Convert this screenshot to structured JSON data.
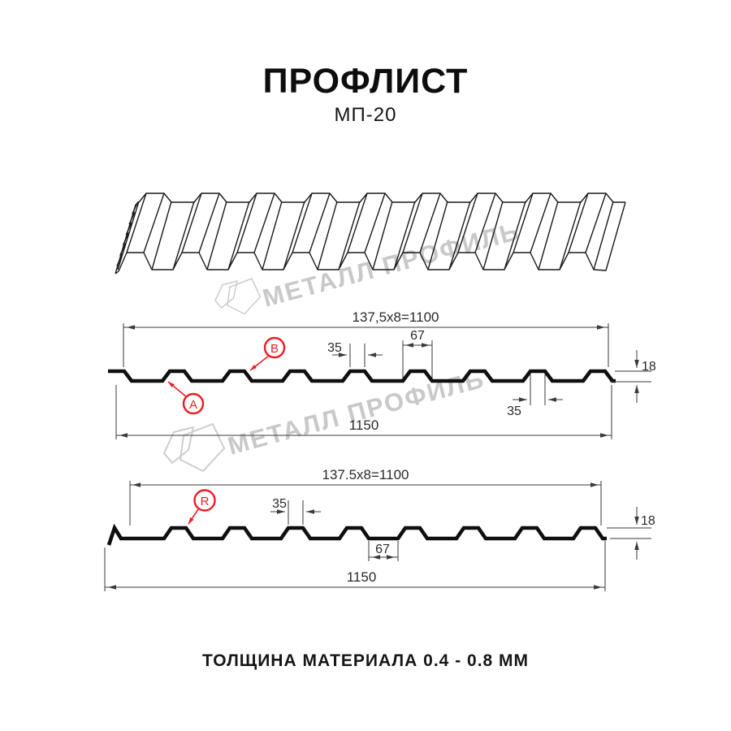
{
  "title": "ПРОФЛИСТ",
  "subtitle": "МП-20",
  "footer": "ТОЛЩИНА МАТЕРИАЛА 0.4 - 0.8 ММ",
  "watermark": {
    "brand": "МЕТАЛЛ ПРОФИЛЬ"
  },
  "colors": {
    "accent_red": "#ed1c24",
    "line": "#1a1a1a",
    "watermark_gray": "#c9c9c9"
  },
  "diagram1": {
    "width_formula": "137,5x8=1100",
    "overall_width": "1150",
    "crest_top_width": "35",
    "crest_base_width": "67",
    "crest_top_width_b": "35",
    "profile_height": "18",
    "marker_a": "A",
    "marker_b": "B"
  },
  "diagram2": {
    "width_formula": "137.5x8=1100",
    "overall_width": "1150",
    "crest_top_width": "35",
    "valley_width": "67",
    "profile_height": "18",
    "marker_r": "R"
  }
}
